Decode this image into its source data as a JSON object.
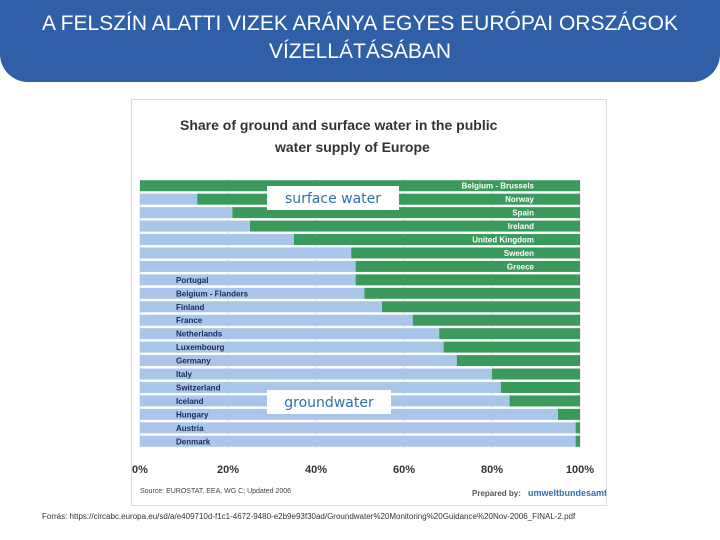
{
  "slide": {
    "title": "A FELSZÍN ALATTI VIZEK ARÁNYA EGYES EURÓPAI ORSZÁGOK VÍZELLÁTÁSÁBAN",
    "caption": "Forrás: https://circabc.europa.eu/sd/a/e409710d-f1c1-4672-9480-e2b9e93f30ad/Groundwater%20Monitoring%20Guidance%20Nov-2006_FINAL-2.pdf"
  },
  "colors": {
    "title_band": "#2f5fa6",
    "groundwater": "#a9c6ea",
    "surface": "#3a9a5b",
    "chart_title": "#333333"
  },
  "chart_data": {
    "type": "bar",
    "orientation": "horizontal",
    "stacked": true,
    "title": "Share of ground and surface water in the public water supply of Europe",
    "source": "Source: EUROSTAT, EEA, WG C; Updated 2006",
    "prepared_by_label": "Prepared by:",
    "prepared_by_org": "umweltbundesamt",
    "region_labels": {
      "surface": "surface water",
      "ground": "groundwater"
    },
    "x_ticks": [
      "0%",
      "20%",
      "40%",
      "60%",
      "80%",
      "100%"
    ],
    "xlim": [
      0,
      100
    ],
    "categories": [
      "Belgium - Brussels",
      "Norway",
      "Spain",
      "Ireland",
      "United Kingdom",
      "Sweden",
      "Greece",
      "Portugal",
      "Belgium - Flanders",
      "Finland",
      "France",
      "Netherlands",
      "Luxembourg",
      "Germany",
      "Italy",
      "Switzerland",
      "Iceland",
      "Hungary",
      "Austria",
      "Denmark"
    ],
    "label_side": [
      "right",
      "right",
      "right",
      "right",
      "right",
      "right",
      "right",
      "left",
      "left",
      "left",
      "left",
      "left",
      "left",
      "left",
      "left",
      "left",
      "left",
      "left",
      "left",
      "left"
    ],
    "series": [
      {
        "name": "groundwater",
        "values": [
          0,
          13,
          21,
          25,
          35,
          48,
          49,
          49,
          51,
          55,
          62,
          68,
          69,
          72,
          80,
          82,
          84,
          95,
          99,
          99
        ]
      },
      {
        "name": "surface water",
        "values": [
          100,
          87,
          79,
          75,
          65,
          52,
          51,
          51,
          49,
          45,
          38,
          32,
          31,
          28,
          20,
          18,
          16,
          5,
          1,
          1
        ]
      }
    ]
  }
}
